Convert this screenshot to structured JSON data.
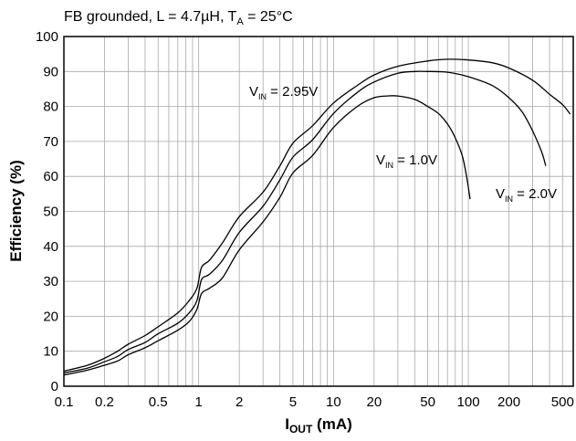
{
  "chart_data": {
    "type": "line",
    "subtitle": {
      "prefix": "FB grounded,  L = 4.7µH,  T",
      "sub": "A",
      "suffix": " = 25°C"
    },
    "xlabel": {
      "main": "I",
      "sub": "OUT",
      "tail": " (mA)"
    },
    "ylabel": "Efficiency (%)",
    "x_scale": "log",
    "xlim": [
      0.1,
      600
    ],
    "ylim": [
      0,
      100
    ],
    "grid": true,
    "x_ticks": [
      {
        "value": 0.1,
        "label": "0.1"
      },
      {
        "value": 0.2,
        "label": "0.2"
      },
      {
        "value": 0.5,
        "label": "0.5"
      },
      {
        "value": 1,
        "label": "1"
      },
      {
        "value": 2,
        "label": "2"
      },
      {
        "value": 5,
        "label": "5"
      },
      {
        "value": 10,
        "label": "10"
      },
      {
        "value": 20,
        "label": "20"
      },
      {
        "value": 50,
        "label": "50"
      },
      {
        "value": 100,
        "label": "100"
      },
      {
        "value": 200,
        "label": "200"
      },
      {
        "value": 500,
        "label": "500"
      }
    ],
    "y_ticks": [
      {
        "value": 0,
        "label": "0"
      },
      {
        "value": 10,
        "label": "10"
      },
      {
        "value": 20,
        "label": "20"
      },
      {
        "value": 30,
        "label": "30"
      },
      {
        "value": 40,
        "label": "40"
      },
      {
        "value": 50,
        "label": "50"
      },
      {
        "value": 60,
        "label": "60"
      },
      {
        "value": 70,
        "label": "70"
      },
      {
        "value": 80,
        "label": "80"
      },
      {
        "value": 90,
        "label": "90"
      },
      {
        "value": 100,
        "label": "100"
      }
    ],
    "series": [
      {
        "id": "vin-1-0",
        "label": {
          "main": "V",
          "sub": "IN",
          "tail": " = 1.0V"
        },
        "points": [
          [
            0.1,
            3.2
          ],
          [
            0.15,
            4.6
          ],
          [
            0.2,
            6.0
          ],
          [
            0.25,
            7.2
          ],
          [
            0.3,
            9.0
          ],
          [
            0.4,
            11.0
          ],
          [
            0.5,
            13.0
          ],
          [
            0.7,
            16.0
          ],
          [
            0.85,
            18.5
          ],
          [
            0.97,
            22.0
          ],
          [
            1.05,
            26.5
          ],
          [
            1.2,
            28.0
          ],
          [
            1.5,
            31.0
          ],
          [
            2,
            39.0
          ],
          [
            3,
            47.0
          ],
          [
            4,
            54.0
          ],
          [
            5,
            61.0
          ],
          [
            7,
            66.0
          ],
          [
            10,
            74.0
          ],
          [
            15,
            80.0
          ],
          [
            20,
            82.5
          ],
          [
            25,
            83.0
          ],
          [
            30,
            83.0
          ],
          [
            40,
            82.0
          ],
          [
            50,
            80.0
          ],
          [
            60,
            78.0
          ],
          [
            70,
            75.0
          ],
          [
            80,
            71.0
          ],
          [
            90,
            66.0
          ],
          [
            97,
            60.0
          ],
          [
            103,
            53.5
          ]
        ]
      },
      {
        "id": "vin-2-0",
        "label": {
          "main": "V",
          "sub": "IN",
          "tail": " = 2.0V"
        },
        "points": [
          [
            0.1,
            3.8
          ],
          [
            0.15,
            5.2
          ],
          [
            0.2,
            7.0
          ],
          [
            0.25,
            8.5
          ],
          [
            0.3,
            10.5
          ],
          [
            0.4,
            12.5
          ],
          [
            0.5,
            15.0
          ],
          [
            0.7,
            18.0
          ],
          [
            0.85,
            21.0
          ],
          [
            0.97,
            24.5
          ],
          [
            1.05,
            30.5
          ],
          [
            1.2,
            32.0
          ],
          [
            1.5,
            36.0
          ],
          [
            2,
            44.0
          ],
          [
            3,
            51.5
          ],
          [
            4,
            59.0
          ],
          [
            5,
            65.5
          ],
          [
            7,
            70.5
          ],
          [
            10,
            78.0
          ],
          [
            15,
            84.0
          ],
          [
            20,
            87.0
          ],
          [
            30,
            89.5
          ],
          [
            40,
            90.0
          ],
          [
            50,
            90.0
          ],
          [
            70,
            89.8
          ],
          [
            100,
            88.5
          ],
          [
            150,
            86.0
          ],
          [
            200,
            82.5
          ],
          [
            250,
            78.5
          ],
          [
            300,
            73.0
          ],
          [
            350,
            67.0
          ],
          [
            375,
            63.0
          ]
        ]
      },
      {
        "id": "vin-2-95",
        "label": {
          "main": "V",
          "sub": "IN",
          "tail": " = 2.95V"
        },
        "points": [
          [
            0.1,
            4.3
          ],
          [
            0.15,
            6.0
          ],
          [
            0.2,
            8.0
          ],
          [
            0.25,
            10.0
          ],
          [
            0.3,
            12.0
          ],
          [
            0.4,
            14.5
          ],
          [
            0.5,
            17.0
          ],
          [
            0.7,
            21.0
          ],
          [
            0.85,
            24.5
          ],
          [
            0.97,
            28.0
          ],
          [
            1.05,
            34.0
          ],
          [
            1.2,
            36.0
          ],
          [
            1.5,
            41.0
          ],
          [
            2,
            48.5
          ],
          [
            3,
            55.5
          ],
          [
            4,
            63.0
          ],
          [
            5,
            69.5
          ],
          [
            7,
            74.5
          ],
          [
            10,
            81.0
          ],
          [
            15,
            86.0
          ],
          [
            20,
            89.0
          ],
          [
            30,
            91.5
          ],
          [
            50,
            93.0
          ],
          [
            70,
            93.5
          ],
          [
            100,
            93.3
          ],
          [
            150,
            92.5
          ],
          [
            200,
            91.0
          ],
          [
            300,
            87.5
          ],
          [
            400,
            83.5
          ],
          [
            500,
            80.5
          ],
          [
            570,
            77.8
          ]
        ]
      }
    ]
  }
}
